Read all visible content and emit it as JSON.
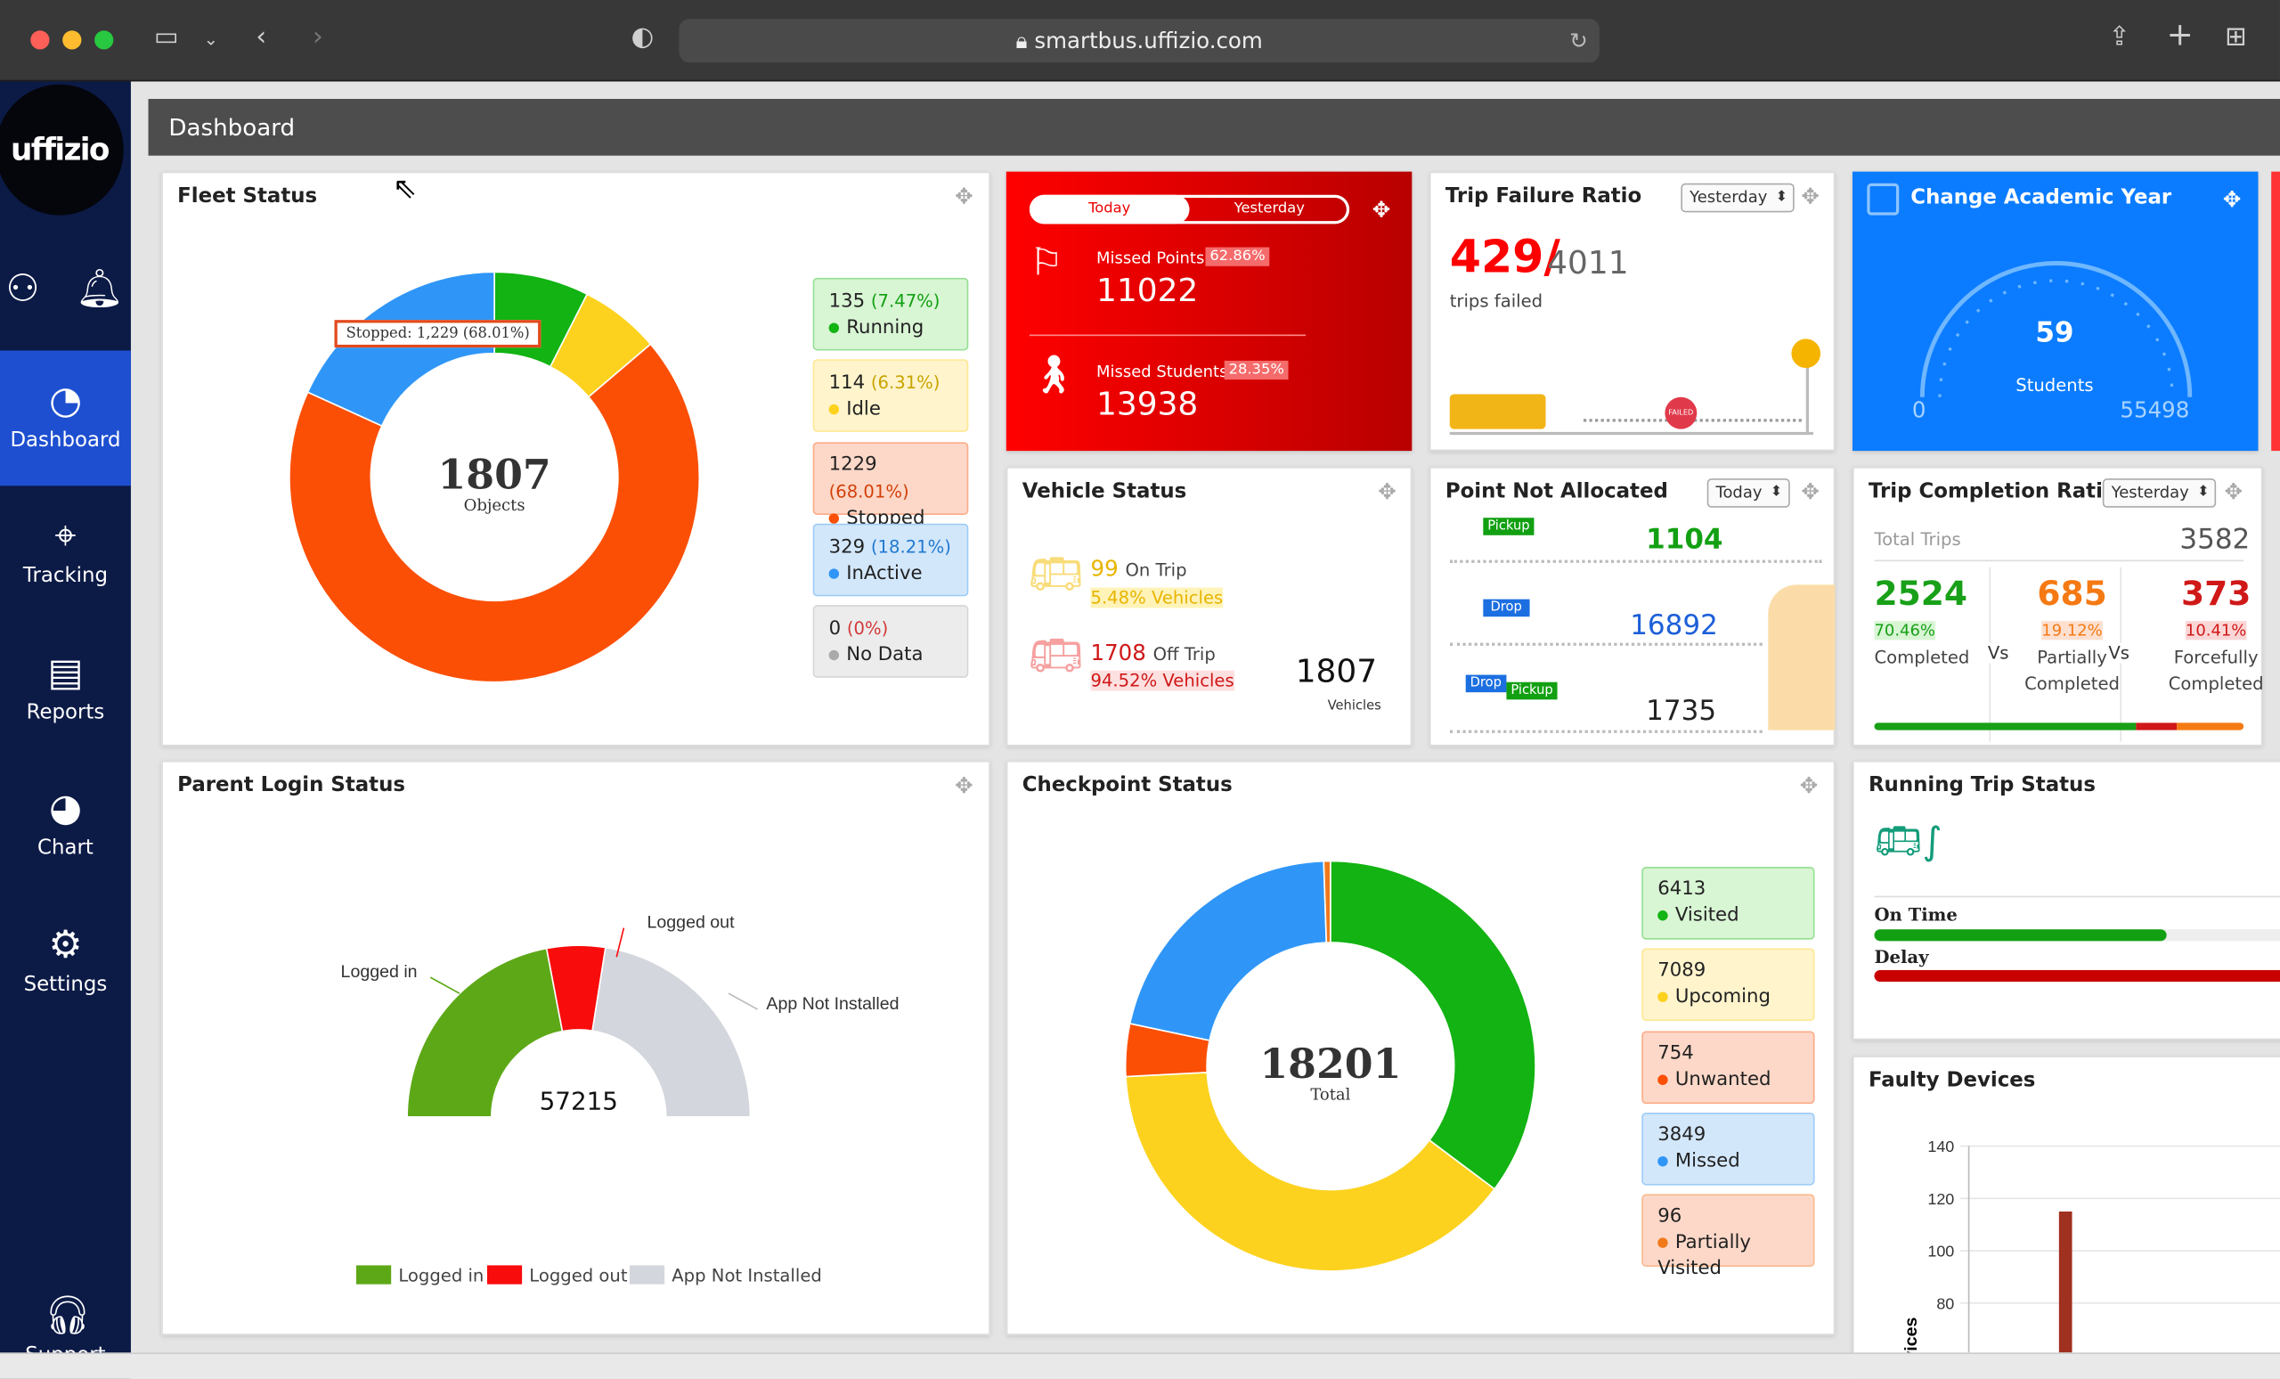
{
  "browser": {
    "url": "smartbus.uffizio.com"
  },
  "sidebar": {
    "logo": "uffizio",
    "items": [
      {
        "label": "Dashboard",
        "icon": "dashboard-gauge-icon",
        "active": true
      },
      {
        "label": "Tracking",
        "icon": "map-pin-icon"
      },
      {
        "label": "Reports",
        "icon": "report-icon"
      },
      {
        "label": "Chart",
        "icon": "pie-chart-icon"
      },
      {
        "label": "Settings",
        "icon": "gear-icon"
      },
      {
        "label": "Support",
        "icon": "headset-icon"
      }
    ]
  },
  "header": {
    "title": "Dashboard"
  },
  "fleet": {
    "title": "Fleet Status",
    "total": "1807",
    "total_label": "Objects",
    "tooltip": "Stopped: 1,229 (68.01%)",
    "items": [
      {
        "value": "135",
        "pct": "(7.47%)",
        "label": "Running",
        "color": "#12b312",
        "bg": "#d8f5d4",
        "pctcolor": "#12a012"
      },
      {
        "value": "114",
        "pct": "(6.31%)",
        "label": "Idle",
        "color": "#fcd21e",
        "bg": "#fff4cc",
        "pctcolor": "#c9a400"
      },
      {
        "value": "1229",
        "pct": "(68.01%)",
        "label": "Stopped",
        "color": "#fb4f06",
        "bg": "#fdd8c8",
        "pctcolor": "#d2400a"
      },
      {
        "value": "329",
        "pct": "(18.21%)",
        "label": "InActive",
        "color": "#2f96f7",
        "bg": "#d3e7fb",
        "pctcolor": "#1f78d0"
      },
      {
        "value": "0",
        "pct": "(0%)",
        "label": "No Data",
        "color": "#aaaaaa",
        "bg": "#ececec",
        "pctcolor": "#d23a3a"
      }
    ]
  },
  "missed": {
    "tab_today": "Today",
    "tab_yesterday": "Yesterday",
    "points_label": "Missed Points",
    "points_pct": "62.86%",
    "points_value": "11022",
    "students_label": "Missed Students",
    "students_pct": "28.35%",
    "students_value": "13938"
  },
  "trip_failure": {
    "title": "Trip Failure Ratio",
    "filter": "Yesterday",
    "failed": "429/",
    "total": "4011",
    "caption": "trips failed",
    "badge": "FAILED"
  },
  "academic": {
    "title": "Change Academic Year",
    "value": "59",
    "label": "Students",
    "min": "0",
    "max": "55498"
  },
  "vehicle": {
    "title": "Vehicle Status",
    "on_value": "99",
    "on_label": "On Trip",
    "on_pct": "5.48% Vehicles",
    "off_value": "1708",
    "off_label": "Off Trip",
    "off_pct": "94.52% Vehicles",
    "total": "1807",
    "total_label": "Vehicles"
  },
  "point": {
    "title": "Point Not Allocated",
    "filter": "Today",
    "pickup": "Pickup",
    "drop": "Drop",
    "pickup_value": "1104",
    "drop_value": "16892",
    "both_value": "1735"
  },
  "completion": {
    "title": "Trip Completion Ratio",
    "filter": "Yesterday",
    "total_label": "Total Trips",
    "total": "3582",
    "vs": "Vs",
    "items": [
      {
        "value": "2524",
        "pct": "70.46%",
        "label": "Completed",
        "color": "#18a018",
        "bg": "#d8f5d4"
      },
      {
        "value": "685",
        "pct": "19.12%",
        "label": "Partially Completed",
        "color": "#f57a14",
        "bg": "#fde0d0"
      },
      {
        "value": "373",
        "pct": "10.41%",
        "label": "Forcefully Completed",
        "color": "#d01818",
        "bg": "#fbd6d6"
      }
    ]
  },
  "parent": {
    "title": "Parent Login Status",
    "total": "57215",
    "labels": [
      "Logged in",
      "Logged out",
      "App Not Installed"
    ],
    "shares": [
      0.44,
      0.11,
      0.45
    ],
    "colors": [
      "#5da817",
      "#f90c0c",
      "#d4d6dd"
    ]
  },
  "checkpoint": {
    "title": "Checkpoint Status",
    "total": "18201",
    "total_label": "Total",
    "items": [
      {
        "value": "6413",
        "label": "Visited",
        "color": "#12b312",
        "bg": "#d8f5d4"
      },
      {
        "value": "7089",
        "label": "Upcoming",
        "color": "#fcd21e",
        "bg": "#fff4cc"
      },
      {
        "value": "754",
        "label": "Unwanted",
        "color": "#fb4f06",
        "bg": "#fdd8c8"
      },
      {
        "value": "3849",
        "label": "Missed",
        "color": "#2f96f7",
        "bg": "#d3e7fb"
      },
      {
        "value": "96",
        "label": "Partially Visited",
        "color": "#f07a1a",
        "bg": "#fdd8c8"
      }
    ]
  },
  "running": {
    "title": "Running Trip Status",
    "on_time": "On Time",
    "delay": "Delay",
    "on_time_fraction": 0.73,
    "delay_fraction": 1.0
  },
  "faulty": {
    "title": "Faulty Devices",
    "chart_data": {
      "type": "bar",
      "ylabel": "Devices",
      "yticks": [
        80,
        100,
        120,
        140
      ],
      "values": [
        115
      ],
      "color": "#a0301f"
    }
  }
}
